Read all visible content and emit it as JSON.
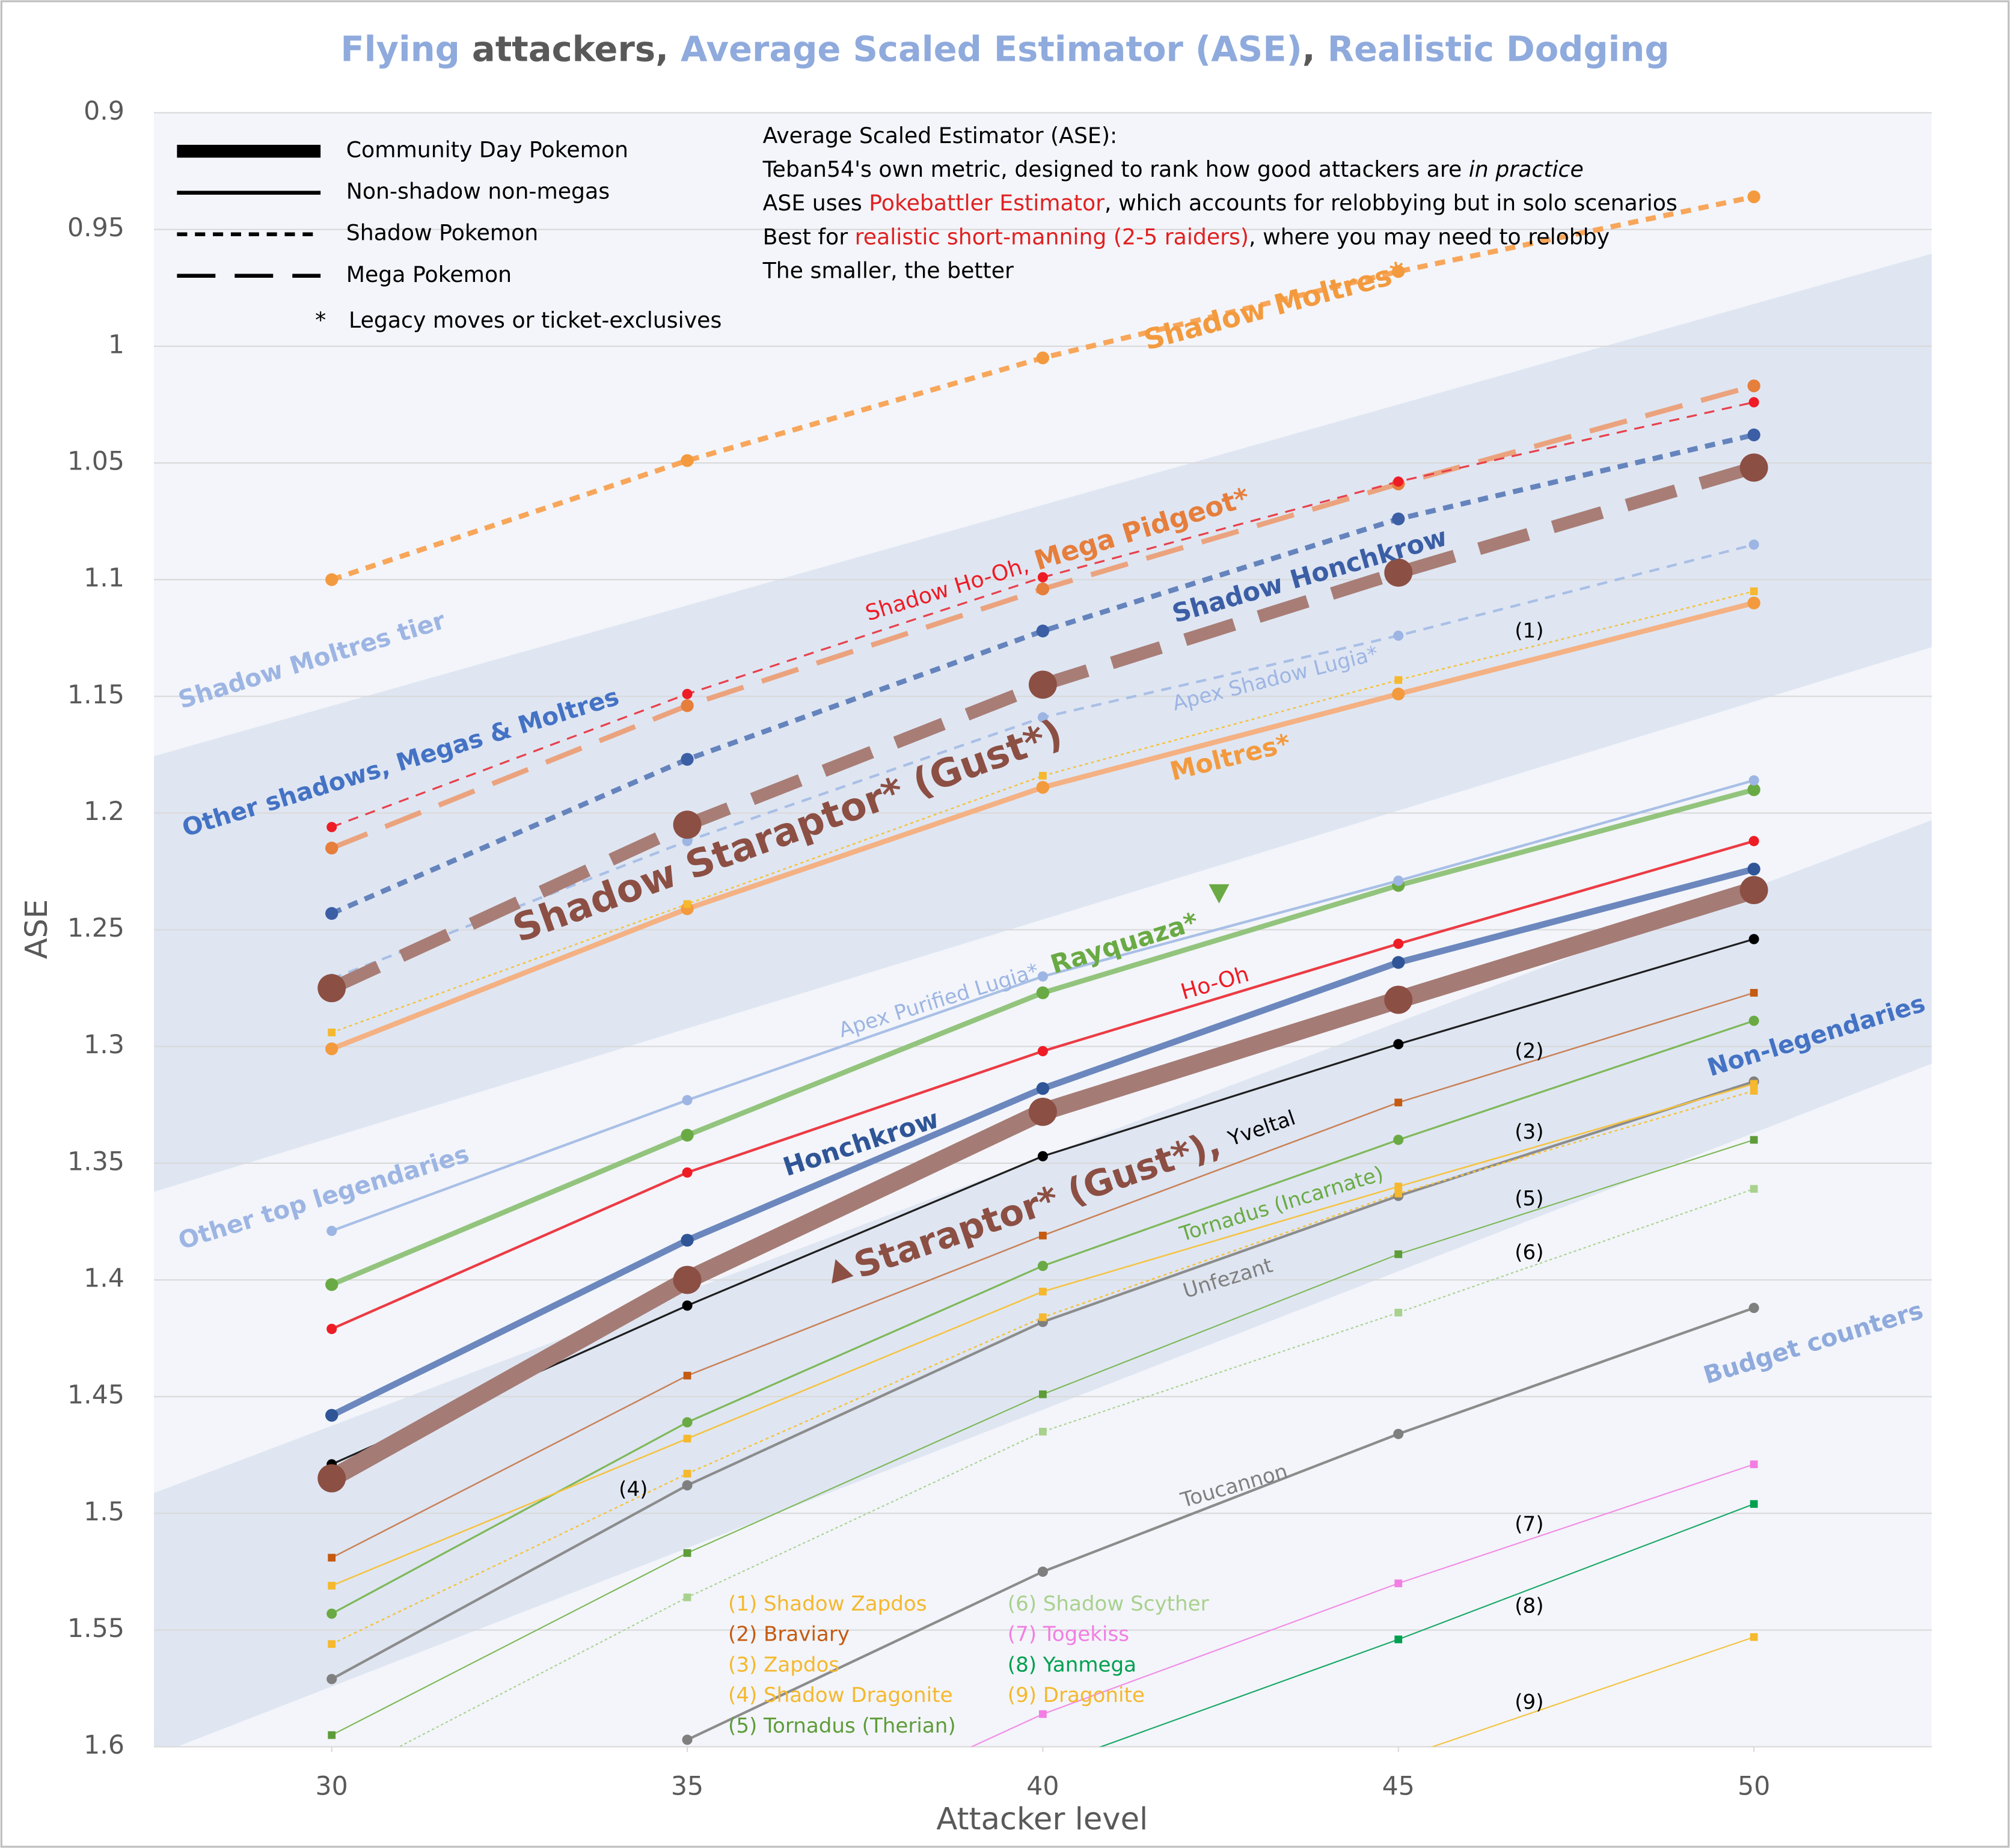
{
  "chart_data": {
    "type": "line",
    "title": [
      {
        "text": "Flying",
        "color": "#8faadc"
      },
      {
        "text": " attackers, ",
        "color": "#595959"
      },
      {
        "text": "Average Scaled Estimator (ASE)",
        "color": "#8faadc"
      },
      {
        "text": ", ",
        "color": "#595959"
      },
      {
        "text": "Realistic Dodging",
        "color": "#8faadc"
      }
    ],
    "x_label": "Attacker level",
    "y_label": "ASE",
    "x": [
      30,
      35,
      40,
      45,
      50
    ],
    "xlim": [
      27.5,
      52.5
    ],
    "xticks": [
      30,
      35,
      40,
      45,
      50
    ],
    "ylim": [
      0.9,
      1.6
    ],
    "y_inverted": true,
    "yticks": [
      0.9,
      0.95,
      1,
      1.05,
      1.1,
      1.15,
      1.2,
      1.25,
      1.3,
      1.35,
      1.4,
      1.45,
      1.5,
      1.55,
      1.6
    ],
    "grid": true,
    "series": [
      {
        "name": "Shadow Moltres*",
        "color": "#f8a65a",
        "marker_color": "#f39a3e",
        "dash": "dash",
        "width": 4,
        "marker": "circle",
        "marker_size": 5,
        "values": [
          1.1,
          1.049,
          1.005,
          0.968,
          0.936
        ]
      },
      {
        "name": "Shadow Ho-Oh",
        "color": "#e8404a",
        "marker_color": "#ee1c25",
        "dash": "dash",
        "width": 1.5,
        "marker": "circle",
        "marker_size": 4,
        "values": [
          1.206,
          1.149,
          1.099,
          1.058,
          1.024
        ]
      },
      {
        "name": "Mega Pidgeot*",
        "color": "#eba37e",
        "marker_color": "#e67e3c",
        "dash": "long-dash",
        "width": 4,
        "marker": "circle",
        "marker_size": 5,
        "values": [
          1.215,
          1.154,
          1.104,
          1.059,
          1.017
        ]
      },
      {
        "name": "Shadow Honchkrow",
        "color": "#6584bd",
        "marker_color": "#3b5ea5",
        "dash": "dash",
        "width": 4,
        "marker": "circle",
        "marker_size": 5,
        "values": [
          1.243,
          1.177,
          1.122,
          1.074,
          1.038
        ]
      },
      {
        "name": "Shadow Staraptor* (Gust*)",
        "color": "#a87d76",
        "marker_color": "#8c4f43",
        "dash": "long-dash",
        "width": 10,
        "marker": "circle",
        "marker_size": 11,
        "values": [
          1.275,
          1.205,
          1.145,
          1.097,
          1.052
        ]
      },
      {
        "name": "Apex Shadow Lugia*",
        "color": "#a9bfe6",
        "marker_color": "#9db5e3",
        "dash": "dash",
        "width": 2,
        "marker": "circle",
        "marker_size": 4,
        "values": [
          1.271,
          1.212,
          1.159,
          1.124,
          1.085
        ]
      },
      {
        "name": "Shadow Zapdos",
        "number": "(1)",
        "color": "#f5c342",
        "marker_color": "#f5b82e",
        "dash": "dot",
        "width": 1.2,
        "marker": "square",
        "marker_size": 3,
        "values": [
          1.294,
          1.239,
          1.184,
          1.143,
          1.105
        ]
      },
      {
        "name": "Moltres*",
        "color": "#f4b183",
        "marker_color": "#f39a3e",
        "dash": "solid",
        "width": 4,
        "marker": "circle",
        "marker_size": 5,
        "values": [
          1.301,
          1.241,
          1.189,
          1.149,
          1.11
        ]
      },
      {
        "name": "Apex Purified Lugia*",
        "color": "#a9bfe6",
        "marker_color": "#9db5e3",
        "dash": "solid",
        "width": 2,
        "marker": "circle",
        "marker_size": 4,
        "values": [
          1.379,
          1.323,
          1.27,
          1.229,
          1.186
        ]
      },
      {
        "name": "Rayquaza*",
        "color": "#93c47d",
        "marker_color": "#6aaa44",
        "dash": "solid",
        "width": 4,
        "marker": "circle",
        "marker_size": 5,
        "values": [
          1.402,
          1.338,
          1.277,
          1.231,
          1.19
        ]
      },
      {
        "name": "Ho-Oh",
        "color": "#ec3b44",
        "marker_color": "#ee1c25",
        "dash": "solid",
        "width": 2,
        "marker": "circle",
        "marker_size": 4,
        "values": [
          1.421,
          1.354,
          1.302,
          1.256,
          1.212
        ]
      },
      {
        "name": "Honchkrow",
        "color": "#6b87bd",
        "marker_color": "#2f5597",
        "dash": "solid",
        "width": 5,
        "marker": "circle",
        "marker_size": 5,
        "values": [
          1.458,
          1.383,
          1.318,
          1.264,
          1.224
        ]
      },
      {
        "name": "Staraptor* (Gust*)",
        "color": "#a57b75",
        "marker_color": "#8c4f43",
        "dash": "solid",
        "width": 14,
        "marker": "circle",
        "marker_size": 11,
        "values": [
          1.485,
          1.4,
          1.328,
          1.28,
          1.233
        ]
      },
      {
        "name": "Yveltal",
        "color": "#1f1f1f",
        "marker_color": "#000000",
        "dash": "solid",
        "width": 1.5,
        "marker": "circle",
        "marker_size": 4,
        "values": [
          1.479,
          1.411,
          1.347,
          1.299,
          1.254
        ]
      },
      {
        "name": "Braviary",
        "number": "(2)",
        "color": "#c9825a",
        "marker_color": "#c55a11",
        "dash": "solid",
        "width": 1.2,
        "marker": "square",
        "marker_size": 3,
        "values": [
          1.519,
          1.441,
          1.381,
          1.324,
          1.277
        ]
      },
      {
        "name": "Zapdos",
        "number": "(3)",
        "color": "#f5c342",
        "marker_color": "#f5b82e",
        "dash": "solid",
        "width": 1.2,
        "marker": "square",
        "marker_size": 3,
        "values": [
          1.531,
          1.468,
          1.405,
          1.36,
          1.316
        ]
      },
      {
        "name": "Tornadus (Incarnate)",
        "color": "#7fb85a",
        "marker_color": "#6aaa44",
        "dash": "solid",
        "width": 1.5,
        "marker": "circle",
        "marker_size": 4,
        "values": [
          1.543,
          1.461,
          1.394,
          1.34,
          1.289
        ]
      },
      {
        "name": "Shadow Dragonite",
        "number": "(4)",
        "color": "#f5c342",
        "marker_color": "#f5b82e",
        "dash": "dot",
        "width": 1.2,
        "marker": "square",
        "marker_size": 3,
        "values": [
          1.556,
          1.483,
          1.416,
          1.363,
          1.319
        ]
      },
      {
        "name": "Unfezant",
        "color": "#8c8c8c",
        "marker_color": "#7f7f7f",
        "dash": "solid",
        "width": 2,
        "marker": "circle",
        "marker_size": 4,
        "values": [
          1.571,
          1.488,
          1.418,
          1.364,
          1.315
        ]
      },
      {
        "name": "Tornadus (Therian)",
        "number": "(5)",
        "color": "#7fb85a",
        "marker_color": "#5e9c3a",
        "dash": "solid",
        "width": 1,
        "marker": "square",
        "marker_size": 3,
        "values": [
          1.595,
          1.517,
          1.449,
          1.389,
          1.34
        ]
      },
      {
        "name": "Shadow Scyther",
        "number": "(6)",
        "color": "#a9d18e",
        "marker_color": "#a9d18e",
        "dash": "dot",
        "width": 1,
        "marker": "square",
        "marker_size": 3,
        "values": [
          1.615,
          1.536,
          1.465,
          1.414,
          1.361
        ]
      },
      {
        "name": "Toucannon",
        "color": "#8c8c8c",
        "marker_color": "#7f7f7f",
        "dash": "solid",
        "width": 2,
        "marker": "circle",
        "marker_size": 4,
        "values": [
          null,
          1.597,
          1.525,
          1.466,
          1.412
        ]
      },
      {
        "name": "Togekiss",
        "number": "(7)",
        "color": "#f28ce6",
        "marker_color": "#f27ee3",
        "dash": "solid",
        "width": 1,
        "marker": "square",
        "marker_size": 3,
        "values": [
          null,
          1.656,
          1.586,
          1.53,
          1.479
        ]
      },
      {
        "name": "Yanmega",
        "number": "(8)",
        "color": "#1aa866",
        "marker_color": "#00a050",
        "dash": "solid",
        "width": 1,
        "marker": "square",
        "marker_size": 3,
        "values": [
          null,
          null,
          1.609,
          1.554,
          1.496
        ]
      },
      {
        "name": "Dragonite",
        "number": "(9)",
        "color": "#f5c342",
        "marker_color": "#f5b82e",
        "dash": "solid",
        "width": 1,
        "marker": "square",
        "marker_size": 3,
        "values": [
          null,
          null,
          null,
          1.605,
          1.553
        ]
      }
    ],
    "separators": [
      {
        "text": ",",
        "color": "#ee1c25"
      },
      {
        "text": ",",
        "color": "#9db5e3"
      },
      {
        "text": ",",
        "color": "#8c4f43"
      }
    ],
    "tiers": [
      {
        "text": "Shadow Moltres tier",
        "color": "#9db5e3"
      },
      {
        "text": "Other shadows, Megas & Moltres",
        "color": "#4472c4"
      },
      {
        "text": "Other top legendaries",
        "color": "#9db5e3"
      },
      {
        "text": "Non-legendaries",
        "color": "#4472c4"
      },
      {
        "text": "Budget counters",
        "color": "#8faadc"
      }
    ],
    "line_styles": [
      {
        "label": "Community Day Pokemon",
        "dash": "solid",
        "width": 10
      },
      {
        "label": "Non-shadow non-megas",
        "dash": "solid",
        "width": 3
      },
      {
        "label": "Shadow Pokemon",
        "dash": "dash",
        "width": 3
      },
      {
        "label": "Mega Pokemon",
        "dash": "long-dash",
        "width": 3
      },
      {
        "label": "Legacy moves or ticket-exclusives",
        "symbol": "*"
      }
    ],
    "notes": [
      [
        {
          "text": "Average Scaled Estimator (ASE):"
        }
      ],
      [
        {
          "text": "Teban54's own metric, designed to rank how good attackers are "
        },
        {
          "text": "in practice",
          "style": "italic"
        }
      ],
      [
        {
          "text": "ASE uses "
        },
        {
          "text": "Pokebattler Estimator",
          "color": "#e02020"
        },
        {
          "text": ", which accounts for relobbying but in solo scenarios"
        }
      ],
      [
        {
          "text": "Best for "
        },
        {
          "text": "realistic short-manning (2-5 raiders)",
          "color": "#e02020"
        },
        {
          "text": ", where you may need to relobby"
        }
      ],
      [
        {
          "text": "The smaller, the better"
        }
      ]
    ]
  }
}
